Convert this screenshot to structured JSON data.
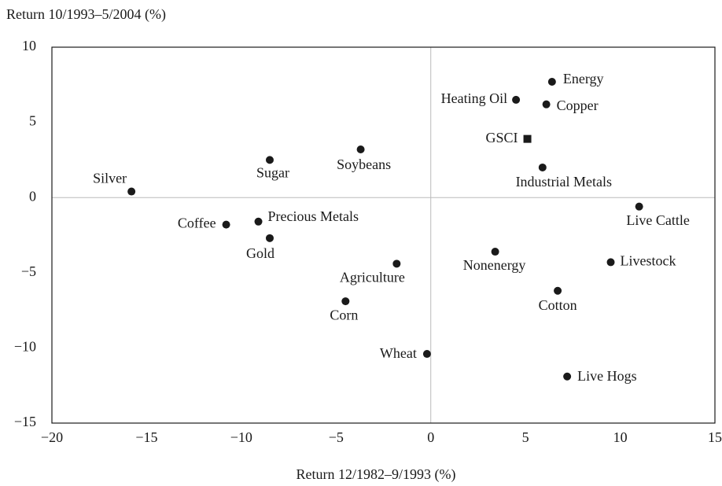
{
  "chart_data": {
    "type": "scatter",
    "ylabel": "Return 10/1993–5/2004 (%)",
    "xlabel": "Return 12/1982–9/1993 (%)",
    "xlim": [
      -20,
      15
    ],
    "ylim": [
      -15,
      10
    ],
    "xticks": [
      {
        "value": -20,
        "label": "−20"
      },
      {
        "value": -15,
        "label": "−15"
      },
      {
        "value": -10,
        "label": "−10"
      },
      {
        "value": -5,
        "label": "−5"
      },
      0,
      5,
      10,
      15
    ],
    "yticks": [
      {
        "value": -15,
        "label": "−15"
      },
      {
        "value": -10,
        "label": "−10"
      },
      {
        "value": -5,
        "label": "−5"
      },
      0,
      5,
      10
    ],
    "color": "#1a1a1a",
    "points": [
      {
        "label": "Silver",
        "x": -15.8,
        "y": 0.4
      },
      {
        "label": "Sugar",
        "x": -8.5,
        "y": 2.5
      },
      {
        "label": "Soybeans",
        "x": -3.7,
        "y": 3.2
      },
      {
        "label": "Coffee",
        "x": -10.8,
        "y": -1.8
      },
      {
        "label": "Precious Metals",
        "x": -9.1,
        "y": -1.6
      },
      {
        "label": "Gold",
        "x": -8.5,
        "y": -2.7
      },
      {
        "label": "Agriculture",
        "x": -1.8,
        "y": -4.4
      },
      {
        "label": "Corn",
        "x": -4.5,
        "y": -6.9
      },
      {
        "label": "Wheat",
        "x": -0.2,
        "y": -10.4
      },
      {
        "label": "Nonenergy",
        "x": 3.4,
        "y": -3.6
      },
      {
        "label": "Cotton",
        "x": 6.7,
        "y": -6.2
      },
      {
        "label": "Livestock",
        "x": 9.5,
        "y": -4.3
      },
      {
        "label": "Live Cattle",
        "x": 11.0,
        "y": -0.6
      },
      {
        "label": "Live Hogs",
        "x": 7.2,
        "y": -11.9
      },
      {
        "label": "Energy",
        "x": 6.4,
        "y": 7.7
      },
      {
        "label": "Heating Oil",
        "x": 4.5,
        "y": 6.5
      },
      {
        "label": "Copper",
        "x": 6.1,
        "y": 6.2
      },
      {
        "label": "GSCI",
        "x": 5.1,
        "y": 3.9,
        "marker": "square"
      },
      {
        "label": "Industrial Metals",
        "x": 5.9,
        "y": 2.0
      }
    ]
  }
}
